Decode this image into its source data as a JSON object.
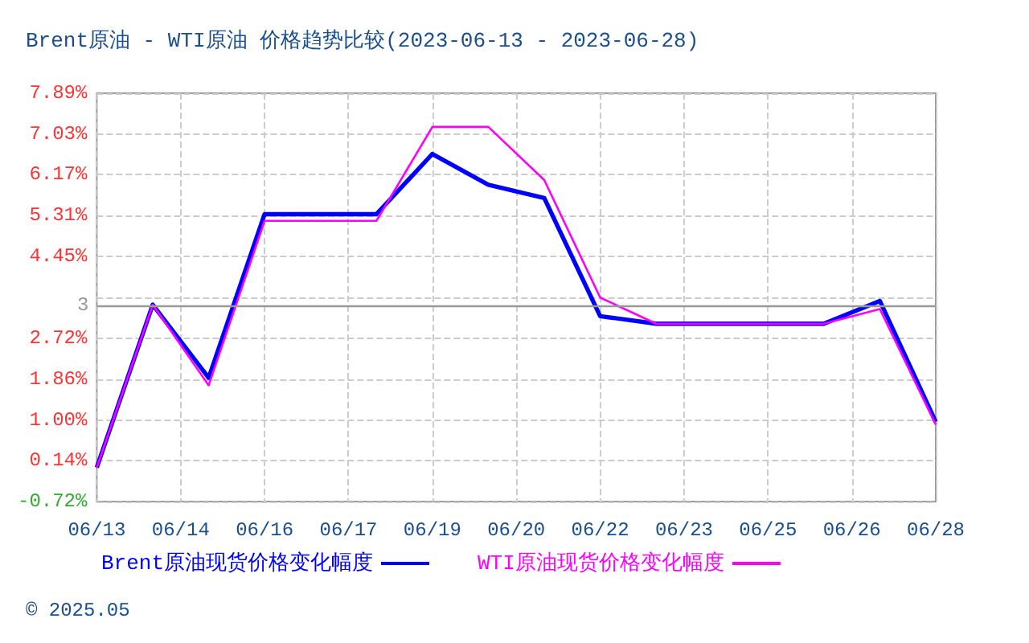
{
  "chart_data": {
    "type": "line",
    "title": "Brent原油 - WTI原油 价格趋势比较(2023-06-13 - 2023-06-28)",
    "x": [
      "2023-06-13",
      "2023-06-14",
      "2023-06-15",
      "2023-06-16",
      "2023-06-17",
      "2023-06-18",
      "2023-06-19",
      "2023-06-20",
      "2023-06-21",
      "2023-06-22",
      "2023-06-23",
      "2023-06-24",
      "2023-06-25",
      "2023-06-26",
      "2023-06-27",
      "2023-06-28"
    ],
    "series": [
      {
        "name": "Brent原油现货价格变化幅度",
        "color": "#0000ff",
        "values": [
          0.0,
          3.43,
          1.89,
          5.34,
          5.34,
          5.34,
          6.61,
          5.96,
          5.68,
          3.19,
          3.03,
          3.03,
          3.03,
          3.03,
          3.51,
          0.96
        ]
      },
      {
        "name": "WTI原油现货价格变化幅度",
        "color": "#ff00ff",
        "values": [
          0.0,
          3.43,
          1.73,
          5.2,
          5.2,
          5.2,
          7.18,
          7.18,
          6.06,
          3.58,
          3.03,
          3.03,
          3.03,
          3.03,
          3.34,
          0.9
        ]
      }
    ],
    "xlim": [
      "2023-06-13",
      "2023-06-28"
    ],
    "xticks": [
      {
        "value": "2023-06-13",
        "label": "06/13"
      },
      {
        "value": "2023-06-14T12:00",
        "label": "06/14"
      },
      {
        "value": "2023-06-16",
        "label": "06/16"
      },
      {
        "value": "2023-06-17T12:00",
        "label": "06/17"
      },
      {
        "value": "2023-06-19",
        "label": "06/19"
      },
      {
        "value": "2023-06-20T12:00",
        "label": "06/20"
      },
      {
        "value": "2023-06-22",
        "label": "06/22"
      },
      {
        "value": "2023-06-23T12:00",
        "label": "06/23"
      },
      {
        "value": "2023-06-25",
        "label": "06/25"
      },
      {
        "value": "2023-06-26T12:00",
        "label": "06/26"
      },
      {
        "value": "2023-06-28",
        "label": "06/28"
      }
    ],
    "ylim": [
      -0.72,
      7.89
    ],
    "yticks": [
      {
        "value": -0.72,
        "label": "-0.72%"
      },
      {
        "value": 0.14,
        "label": "0.14%"
      },
      {
        "value": 1.0,
        "label": "1.00%"
      },
      {
        "value": 1.86,
        "label": "1.86%"
      },
      {
        "value": 2.72,
        "label": "2.72%"
      },
      {
        "value": 3.58,
        "label": null
      },
      {
        "value": 4.45,
        "label": "4.45%"
      },
      {
        "value": 5.31,
        "label": "5.31%"
      },
      {
        "value": 6.17,
        "label": "6.17%"
      },
      {
        "value": 7.03,
        "label": "7.03%"
      },
      {
        "value": 7.89,
        "label": "7.89%"
      }
    ],
    "ref_lines": [
      {
        "axis": "y",
        "value": 3.42,
        "label": "3",
        "color": "#999999"
      }
    ],
    "grid": true,
    "legend": "bottom left",
    "marker": "none",
    "line_style": "solid",
    "annotations": [
      "© 2025.05"
    ]
  }
}
